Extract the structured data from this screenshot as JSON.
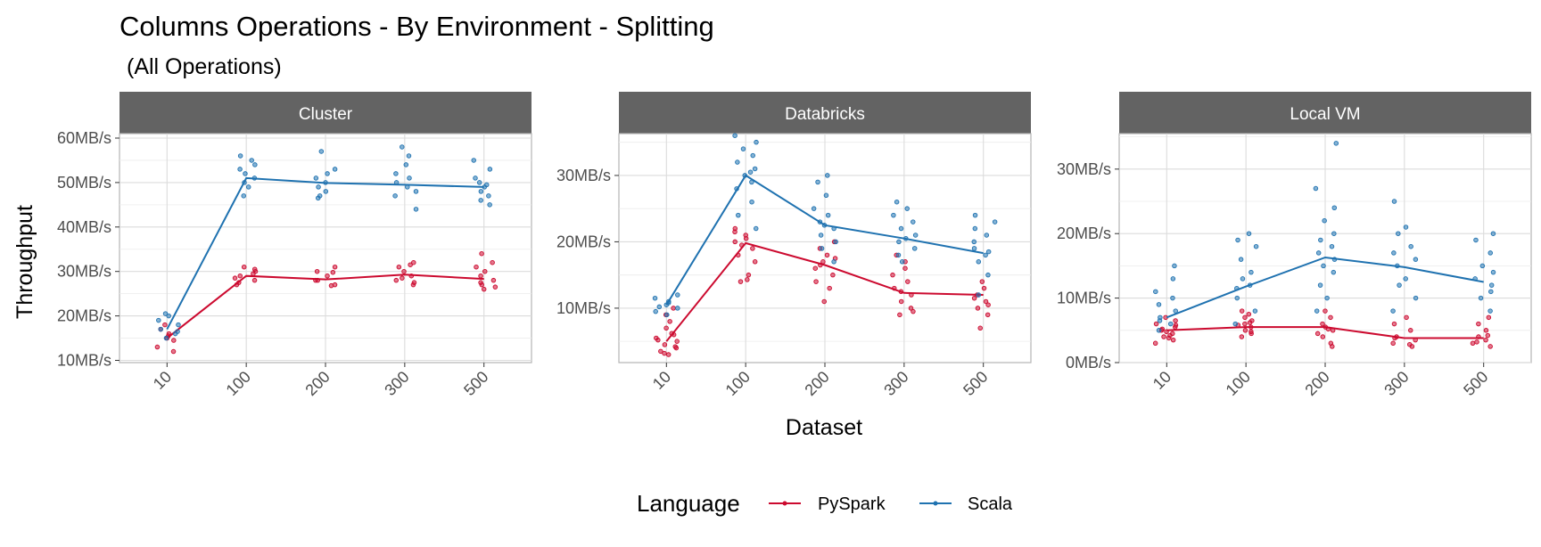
{
  "title": "Columns Operations - By Environment - Splitting",
  "subtitle": "(All Operations)",
  "xlabel": "Dataset",
  "ylabel": "Throughput",
  "legend": {
    "title": "Language",
    "items": [
      {
        "label": "PySpark",
        "color": "#cc0a2f"
      },
      {
        "label": "Scala",
        "color": "#1f72b0"
      }
    ]
  },
  "chart_data": [
    {
      "type": "line",
      "facet": "Cluster",
      "categories": [
        "10",
        "100",
        "200",
        "300",
        "500"
      ],
      "ylim": [
        9.5,
        61
      ],
      "y_ticks": [
        10,
        20,
        30,
        40,
        50,
        60
      ],
      "tick_labels": [
        "10MB/s",
        "20MB/s",
        "30MB/s",
        "40MB/s",
        "50MB/s",
        "60MB/s"
      ],
      "unit": "MB/s",
      "grid": true,
      "series": [
        {
          "name": "PySpark",
          "color": "#cc0a2f",
          "values": [
            15,
            29,
            28.2,
            29.3,
            28.3
          ],
          "points": [
            [
              15,
              16,
              18,
              12,
              13,
              14.5,
              17,
              15.5
            ],
            [
              28,
              29,
              30,
              31,
              27,
              29.5,
              28.5,
              30.5,
              27.5
            ],
            [
              27,
              28,
              29,
              30,
              31,
              28,
              26.8,
              29.8
            ],
            [
              27,
              28,
              29,
              31,
              32,
              30,
              27.5,
              28.5,
              31.5
            ],
            [
              26,
              27,
              28,
              29,
              30,
              31,
              32,
              34,
              26.5,
              27.5
            ]
          ]
        },
        {
          "name": "Scala",
          "color": "#1f72b0",
          "values": [
            17,
            51,
            49.9,
            49.5,
            49
          ],
          "points": [
            [
              15,
              16,
              17,
              18,
              19,
              20,
              20.5,
              16.5
            ],
            [
              47,
              49,
              50,
              51,
              52,
              54,
              56,
              55,
              53
            ],
            [
              47,
              48,
              49,
              50,
              51,
              52,
              57,
              53,
              46.5
            ],
            [
              44,
              47,
              48,
              49,
              50,
              51,
              52,
              54,
              58,
              56
            ],
            [
              45,
              46,
              47,
              48,
              49,
              50,
              51,
              53,
              55,
              49.5
            ]
          ]
        }
      ]
    },
    {
      "type": "line",
      "facet": "Databricks",
      "categories": [
        "10",
        "100",
        "200",
        "300",
        "500"
      ],
      "ylim": [
        1.8,
        36.3
      ],
      "y_ticks": [
        10,
        20,
        30
      ],
      "tick_labels": [
        "10MB/s",
        "20MB/s",
        "30MB/s"
      ],
      "unit": "MB/s",
      "grid": true,
      "series": [
        {
          "name": "PySpark",
          "color": "#cc0a2f",
          "values": [
            5,
            19.8,
            16.5,
            12.3,
            12
          ],
          "points": [
            [
              3,
              3.5,
              4,
              4.5,
              5,
              5.5,
              6,
              7,
              8,
              9,
              10,
              3.2,
              4.2,
              5.2,
              6.2
            ],
            [
              14,
              15,
              17,
              18,
              19,
              20,
              21,
              22,
              14.3,
              19.5,
              20.5,
              21.5
            ],
            [
              11,
              13,
              14,
              15,
              16,
              17,
              18,
              19,
              20,
              16.5,
              17.5
            ],
            [
              9,
              10,
              11,
              12,
              13,
              14,
              15,
              16,
              17,
              18,
              9.5,
              12.5
            ],
            [
              7,
              9,
              10,
              11,
              12,
              13,
              14,
              10.5,
              11.5
            ]
          ]
        },
        {
          "name": "Scala",
          "color": "#1f72b0",
          "values": [
            10.5,
            30,
            22.5,
            20.5,
            18.3
          ],
          "points": [
            [
              9,
              9.5,
              10,
              10.5,
              11,
              11.5,
              12,
              10.2,
              10.8
            ],
            [
              22,
              24,
              26,
              28,
              29,
              30,
              31,
              32,
              33,
              34,
              35,
              36,
              30.5
            ],
            [
              17,
              19,
              20,
              21,
              22,
              23,
              24,
              25,
              27,
              29,
              30,
              22.5
            ],
            [
              17,
              18,
              19,
              20,
              21,
              22,
              23,
              24,
              25,
              26,
              20.5
            ],
            [
              12,
              15,
              17,
              18,
              19,
              20,
              21,
              22,
              23,
              24,
              18.5
            ]
          ]
        }
      ]
    },
    {
      "type": "line",
      "facet": "Local VM",
      "categories": [
        "10",
        "100",
        "200",
        "300",
        "500"
      ],
      "ylim": [
        0,
        35.5
      ],
      "y_ticks": [
        0,
        10,
        20,
        30
      ],
      "tick_labels": [
        "0MB/s",
        "10MB/s",
        "20MB/s",
        "30MB/s"
      ],
      "unit": "MB/s",
      "grid": true,
      "series": [
        {
          "name": "PySpark",
          "color": "#cc0a2f",
          "values": [
            5,
            5.5,
            5.5,
            3.8,
            3.8
          ],
          "points": [
            [
              3,
              3.5,
              4,
              4.5,
              5,
              5.5,
              6,
              6.5,
              7,
              4.2,
              5.2,
              3.8,
              4.8,
              5.8
            ],
            [
              4,
              4.5,
              5,
              5.5,
              6,
              6.5,
              7,
              7.5,
              8,
              4.8,
              5.8,
              6.2
            ],
            [
              3,
              4,
              5,
              5.5,
              6,
              7,
              8,
              5.2,
              4.5,
              2.5
            ],
            [
              2.5,
              3,
              3.5,
              4,
              5,
              6,
              7,
              2.8,
              3.8
            ],
            [
              2.5,
              3,
              3.5,
              4,
              5,
              6,
              7,
              3.2,
              4.2
            ]
          ]
        },
        {
          "name": "Scala",
          "color": "#1f72b0",
          "values": [
            7,
            11.8,
            16.3,
            14.8,
            12.5
          ],
          "points": [
            [
              5,
              6,
              7,
              8,
              9,
              10,
              11,
              13,
              15,
              6.5
            ],
            [
              6,
              8,
              10,
              12,
              13,
              14,
              16,
              18,
              19,
              20,
              11.5
            ],
            [
              8,
              10,
              12,
              14,
              15,
              16,
              17,
              18,
              19,
              20,
              22,
              24,
              27,
              34
            ],
            [
              8,
              10,
              12,
              13,
              15,
              16,
              17,
              18,
              20,
              21,
              25
            ],
            [
              8,
              10,
              11,
              12,
              13,
              14,
              15,
              17,
              19,
              20
            ]
          ]
        }
      ]
    }
  ]
}
